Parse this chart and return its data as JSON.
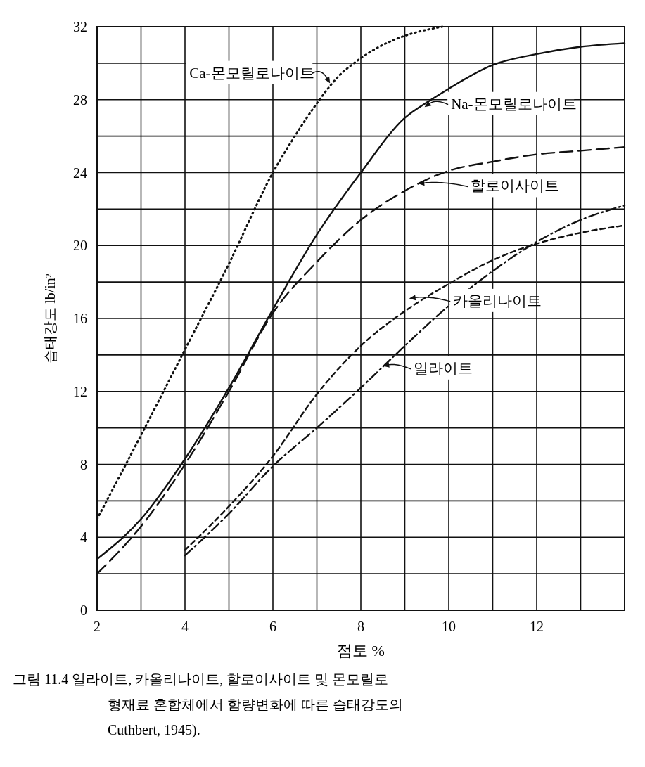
{
  "chart_data": {
    "type": "line",
    "xlabel": "점토 %",
    "ylabel": "습태강도 lb/in²",
    "xlim": [
      2,
      14
    ],
    "xticks": [
      2,
      4,
      6,
      8,
      10,
      12
    ],
    "ylim": [
      0,
      32
    ],
    "yticks": [
      0,
      4,
      8,
      12,
      16,
      20,
      24,
      28,
      32
    ],
    "grid": true,
    "legend": "right",
    "marker": "none",
    "series": [
      {
        "name": "Ca-몬모릴로나이트",
        "color": "#111111",
        "line_style": "dotted",
        "x": [
          2,
          3,
          4,
          5,
          6,
          6.5,
          7,
          7.5,
          7.9,
          8.5,
          9,
          9.85
        ],
        "values": [
          5,
          9.6,
          14.3,
          19,
          24,
          26,
          27.8,
          29.3,
          30.1,
          31,
          31.5,
          32
        ]
      },
      {
        "name": "Na-몬모릴로나이트",
        "color": "#111111",
        "line_style": "solid",
        "x": [
          2,
          3,
          4,
          5,
          6,
          7,
          8,
          9,
          9.6,
          10,
          11,
          12,
          13,
          14
        ],
        "values": [
          2.8,
          5,
          8.3,
          12.2,
          16.5,
          20.6,
          24,
          27,
          28,
          28.6,
          29.9,
          30.5,
          30.9,
          31.1
        ]
      },
      {
        "name": "할로이사이트",
        "color": "#111111",
        "line_style": "longdash",
        "x": [
          2,
          3,
          4,
          5,
          6,
          7,
          8,
          9,
          10,
          11,
          12,
          13,
          14
        ],
        "values": [
          2,
          4.6,
          8,
          12,
          16.3,
          19.1,
          21.4,
          23,
          24.1,
          24.6,
          25,
          25.2,
          25.4
        ]
      },
      {
        "name": "카올리나이트",
        "color": "#111111",
        "line_style": "dashed",
        "x": [
          4,
          5,
          6,
          7,
          8,
          9,
          10,
          11,
          12,
          13,
          14
        ],
        "values": [
          3.3,
          5.7,
          8.45,
          11.85,
          14.5,
          16.4,
          17.9,
          19.2,
          20.1,
          20.7,
          21.1
        ]
      },
      {
        "name": "일라이트",
        "color": "#111111",
        "line_style": "dashdot",
        "x": [
          4,
          5,
          6,
          7,
          8,
          9,
          10,
          11,
          12,
          13,
          14
        ],
        "values": [
          3,
          5.3,
          7.9,
          10,
          12.2,
          14.5,
          16.7,
          18.6,
          20.2,
          21.4,
          22.2
        ]
      }
    ],
    "annotations": [
      "그림 11.4 일라이트, 카올리나이트, 할로이사이트 및 몬모릴로",
      "형재료 혼합체에서 함량변화에 따른 습태강도의",
      "Cuthbert, 1945)."
    ]
  }
}
